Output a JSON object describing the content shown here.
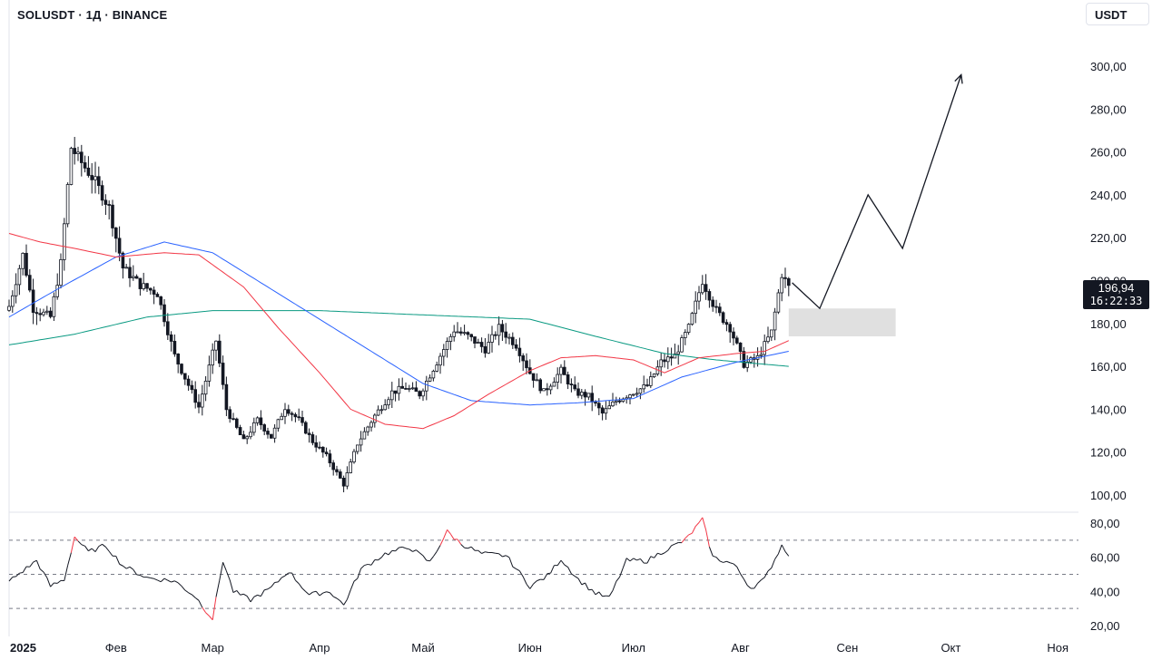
{
  "header": {
    "symbol_title": "SOLUSDT · 1Д · BINANCE",
    "currency_button": "USDT"
  },
  "price_badge": {
    "price": "196,94",
    "countdown": "16:22:33"
  },
  "colors": {
    "candle": "#131722",
    "ma_fast": "#f23645",
    "ma_mid": "#2962ff",
    "ma_slow": "#089981",
    "rsi_line": "#131722",
    "rsi_overbought": "#f23645",
    "zone": "#e0e0e0",
    "divider": "#e0e3eb"
  },
  "chart_data": [
    {
      "type": "candlestick",
      "title": "SOLUSDT · 1Д · BINANCE",
      "ylim": [
        100,
        300
      ],
      "y_ticks": [
        "300,00",
        "280,00",
        "260,00",
        "240,00",
        "220,00",
        "200,00",
        "180,00",
        "160,00",
        "140,00",
        "120,00",
        "100,00"
      ],
      "x_ticks": [
        "2025",
        "Фев",
        "Мар",
        "Апр",
        "Май",
        "Июн",
        "Июл",
        "Авг",
        "Сен",
        "Окт",
        "Ноя"
      ],
      "x_range": [
        "2025-01-01",
        "2025-11-07"
      ],
      "waypoints_close": [
        [
          "2025-01-01",
          188
        ],
        [
          "2025-01-05",
          212
        ],
        [
          "2025-01-08",
          187
        ],
        [
          "2025-01-13",
          183
        ],
        [
          "2025-01-16",
          208
        ],
        [
          "2025-01-19",
          262
        ],
        [
          "2025-01-22",
          255
        ],
        [
          "2025-01-26",
          246
        ],
        [
          "2025-01-30",
          234
        ],
        [
          "2025-02-03",
          206
        ],
        [
          "2025-02-08",
          198
        ],
        [
          "2025-02-13",
          194
        ],
        [
          "2025-02-18",
          165
        ],
        [
          "2025-02-25",
          141
        ],
        [
          "2025-03-02",
          172
        ],
        [
          "2025-03-05",
          140
        ],
        [
          "2025-03-10",
          125
        ],
        [
          "2025-03-14",
          135
        ],
        [
          "2025-03-18",
          127
        ],
        [
          "2025-03-22",
          141
        ],
        [
          "2025-03-26",
          135
        ],
        [
          "2025-03-30",
          125
        ],
        [
          "2025-04-03",
          118
        ],
        [
          "2025-04-08",
          105
        ],
        [
          "2025-04-12",
          124
        ],
        [
          "2025-04-17",
          137
        ],
        [
          "2025-04-22",
          148
        ],
        [
          "2025-04-26",
          150
        ],
        [
          "2025-04-30",
          147
        ],
        [
          "2025-05-05",
          162
        ],
        [
          "2025-05-10",
          177
        ],
        [
          "2025-05-14",
          174
        ],
        [
          "2025-05-19",
          168
        ],
        [
          "2025-05-23",
          178
        ],
        [
          "2025-05-28",
          170
        ],
        [
          "2025-06-01",
          157
        ],
        [
          "2025-06-05",
          148
        ],
        [
          "2025-06-10",
          158
        ],
        [
          "2025-06-14",
          148
        ],
        [
          "2025-06-18",
          146
        ],
        [
          "2025-06-22",
          138
        ],
        [
          "2025-06-26",
          144
        ],
        [
          "2025-07-01",
          148
        ],
        [
          "2025-07-05",
          151
        ],
        [
          "2025-07-09",
          162
        ],
        [
          "2025-07-13",
          165
        ],
        [
          "2025-07-17",
          178
        ],
        [
          "2025-07-21",
          200
        ],
        [
          "2025-07-25",
          186
        ],
        [
          "2025-07-29",
          178
        ],
        [
          "2025-08-02",
          161
        ],
        [
          "2025-08-06",
          164
        ],
        [
          "2025-08-10",
          176
        ],
        [
          "2025-08-13",
          203
        ],
        [
          "2025-08-15",
          196.94
        ]
      ],
      "sma_short": [
        [
          "2025-01-01",
          222
        ],
        [
          "2025-01-10",
          218
        ],
        [
          "2025-01-20",
          215
        ],
        [
          "2025-02-01",
          211
        ],
        [
          "2025-02-15",
          213
        ],
        [
          "2025-02-25",
          212
        ],
        [
          "2025-03-10",
          197
        ],
        [
          "2025-03-20",
          178
        ],
        [
          "2025-04-01",
          157
        ],
        [
          "2025-04-10",
          140
        ],
        [
          "2025-04-20",
          133
        ],
        [
          "2025-05-01",
          131
        ],
        [
          "2025-05-10",
          137
        ],
        [
          "2025-05-20",
          147
        ],
        [
          "2025-06-01",
          158
        ],
        [
          "2025-06-10",
          164
        ],
        [
          "2025-06-20",
          165
        ],
        [
          "2025-07-01",
          163
        ],
        [
          "2025-07-10",
          157
        ],
        [
          "2025-07-20",
          164
        ],
        [
          "2025-07-31",
          166
        ],
        [
          "2025-08-08",
          167
        ],
        [
          "2025-08-15",
          172
        ]
      ],
      "sma_mid": [
        [
          "2025-01-01",
          183
        ],
        [
          "2025-01-15",
          196
        ],
        [
          "2025-02-01",
          211
        ],
        [
          "2025-02-15",
          218
        ],
        [
          "2025-03-01",
          213
        ],
        [
          "2025-03-15",
          199
        ],
        [
          "2025-04-01",
          182
        ],
        [
          "2025-04-15",
          168
        ],
        [
          "2025-05-01",
          152
        ],
        [
          "2025-05-15",
          144
        ],
        [
          "2025-06-01",
          142
        ],
        [
          "2025-06-15",
          143
        ],
        [
          "2025-07-01",
          145
        ],
        [
          "2025-07-15",
          155
        ],
        [
          "2025-07-31",
          162
        ],
        [
          "2025-08-15",
          167
        ]
      ],
      "sma_long": [
        [
          "2025-01-01",
          170
        ],
        [
          "2025-01-20",
          175
        ],
        [
          "2025-02-10",
          183
        ],
        [
          "2025-03-01",
          186
        ],
        [
          "2025-04-01",
          186
        ],
        [
          "2025-05-01",
          184
        ],
        [
          "2025-06-01",
          182
        ],
        [
          "2025-06-20",
          174
        ],
        [
          "2025-07-10",
          166
        ],
        [
          "2025-07-25",
          163
        ],
        [
          "2025-08-15",
          160
        ]
      ],
      "annotations": {
        "zone": {
          "from": "2025-08-15",
          "to": "2025-09-15",
          "low": 174,
          "high": 187
        },
        "projection_path": [
          [
            "2025-08-16",
            199
          ],
          [
            "2025-08-24",
            187
          ],
          [
            "2025-09-07",
            240
          ],
          [
            "2025-09-17",
            215
          ],
          [
            "2025-10-04",
            296
          ]
        ]
      }
    },
    {
      "type": "line",
      "title": "",
      "ylim": [
        20,
        80
      ],
      "y_ticks": [
        "80,00",
        "60,00",
        "40,00",
        "20,00"
      ],
      "levels": [
        70,
        50,
        30
      ],
      "overbought": 70,
      "oversold": 30,
      "values_waypoints": [
        [
          "2025-01-01",
          46
        ],
        [
          "2025-01-05",
          52
        ],
        [
          "2025-01-09",
          58
        ],
        [
          "2025-01-13",
          43
        ],
        [
          "2025-01-17",
          47
        ],
        [
          "2025-01-20",
          72
        ],
        [
          "2025-01-24",
          63
        ],
        [
          "2025-01-29",
          67
        ],
        [
          "2025-02-03",
          55
        ],
        [
          "2025-02-10",
          48
        ],
        [
          "2025-02-18",
          46
        ],
        [
          "2025-02-24",
          37
        ],
        [
          "2025-02-27",
          29
        ],
        [
          "2025-03-01",
          24
        ],
        [
          "2025-03-04",
          58
        ],
        [
          "2025-03-07",
          40
        ],
        [
          "2025-03-12",
          35
        ],
        [
          "2025-03-18",
          42
        ],
        [
          "2025-03-23",
          52
        ],
        [
          "2025-03-29",
          38
        ],
        [
          "2025-04-04",
          40
        ],
        [
          "2025-04-08",
          32
        ],
        [
          "2025-04-13",
          53
        ],
        [
          "2025-04-20",
          62
        ],
        [
          "2025-04-27",
          66
        ],
        [
          "2025-05-03",
          57
        ],
        [
          "2025-05-08",
          75
        ],
        [
          "2025-05-12",
          68
        ],
        [
          "2025-05-18",
          62
        ],
        [
          "2025-05-25",
          61
        ],
        [
          "2025-06-01",
          43
        ],
        [
          "2025-06-06",
          49
        ],
        [
          "2025-06-10",
          59
        ],
        [
          "2025-06-15",
          47
        ],
        [
          "2025-06-20",
          39
        ],
        [
          "2025-06-24",
          36
        ],
        [
          "2025-06-29",
          58
        ],
        [
          "2025-07-05",
          58
        ],
        [
          "2025-07-10",
          64
        ],
        [
          "2025-07-16",
          70
        ],
        [
          "2025-07-21",
          82
        ],
        [
          "2025-07-24",
          60
        ],
        [
          "2025-07-30",
          56
        ],
        [
          "2025-08-04",
          42
        ],
        [
          "2025-08-08",
          47
        ],
        [
          "2025-08-13",
          67
        ],
        [
          "2025-08-15",
          62
        ]
      ]
    }
  ]
}
